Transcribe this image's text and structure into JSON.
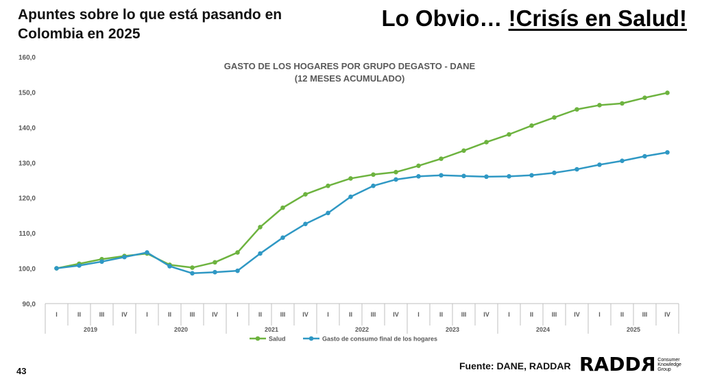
{
  "header": {
    "subtitle": "Apuntes sobre lo que está pasando en Colombia en 2025",
    "headline_prefix": "Lo Obvio… ",
    "headline_emph": "!Crisís en Salud!"
  },
  "footer": {
    "page_number": "43",
    "source": "Fuente: DANE, RADDAR",
    "logo_prefix": "RADD",
    "logo_mirrored": "R",
    "logo_tag": [
      "Consumer",
      "Knowledge",
      "Group"
    ]
  },
  "colors": {
    "salud": "#6db33f",
    "gasto": "#2f98c4",
    "axis_text": "#595959",
    "grid": "#d9d9d9"
  },
  "chart_data": {
    "type": "line",
    "title": "GASTO DE LOS HOGARES POR GRUPO DEGASTO - DANE",
    "subtitle": "(12 MESES ACUMULADO)",
    "xlabel": "",
    "ylabel": "",
    "ylim": [
      90,
      160
    ],
    "yticks": [
      "90,0",
      "100,0",
      "110,0",
      "120,0",
      "130,0",
      "140,0",
      "150,0",
      "160,0"
    ],
    "grid": false,
    "legend": "bottom",
    "quarters": [
      "I",
      "II",
      "III",
      "IV",
      "I",
      "II",
      "III",
      "IV",
      "I",
      "II",
      "III",
      "IV",
      "I",
      "II",
      "III",
      "IV",
      "I",
      "II",
      "III",
      "IV",
      "I",
      "II",
      "III",
      "IV",
      "I",
      "II",
      "III",
      "IV"
    ],
    "years": [
      "2019",
      "2020",
      "2021",
      "2022",
      "2023",
      "2024",
      "2025"
    ],
    "series": [
      {
        "name": "Salud",
        "values": [
          100.0,
          101.3,
          102.6,
          103.5,
          104.2,
          101.0,
          100.2,
          101.7,
          104.5,
          111.7,
          117.2,
          121.0,
          123.4,
          125.5,
          126.6,
          127.3,
          129.1,
          131.1,
          133.4,
          135.8,
          138.0,
          140.5,
          142.8,
          145.1,
          146.3,
          146.8,
          148.4,
          149.8
        ]
      },
      {
        "name": "Gasto de consumo final de los hogares",
        "values": [
          100.0,
          100.8,
          101.9,
          103.2,
          104.5,
          100.6,
          98.6,
          98.9,
          99.3,
          104.2,
          108.7,
          112.6,
          115.7,
          120.3,
          123.4,
          125.2,
          126.1,
          126.4,
          126.2,
          126.0,
          126.1,
          126.4,
          127.1,
          128.1,
          129.4,
          130.5,
          131.8,
          132.9
        ]
      }
    ]
  }
}
